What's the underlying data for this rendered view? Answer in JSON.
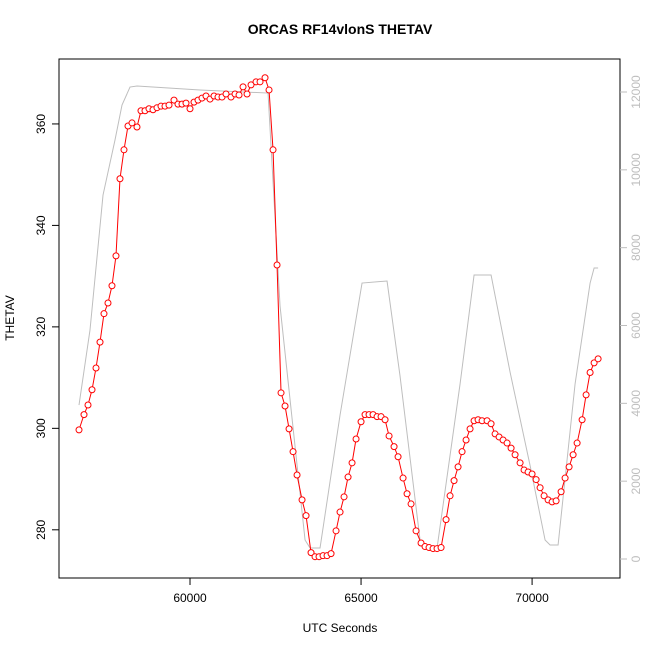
{
  "chart_data": {
    "type": "line",
    "title": "ORCAS RF14vlonS THETAV",
    "x_label": "UTC Seconds",
    "y_label": "THETAV",
    "xlim": [
      56170,
      72570
    ],
    "ylim": [
      270.5,
      372.8
    ],
    "y2lim": [
      -488,
      12848
    ],
    "xticks": [
      60000,
      65000,
      70000
    ],
    "yticks": [
      280,
      300,
      320,
      340,
      360
    ],
    "y2ticks": [
      0,
      2000,
      4000,
      6000,
      8000,
      10000,
      12000
    ],
    "series": [
      {
        "color": "#ff0000",
        "markers": true,
        "x": [
          56755,
          56901,
          57018,
          57135,
          57252,
          57369,
          57485,
          57602,
          57719,
          57836,
          57953,
          58070,
          58187,
          58304,
          58450,
          58567,
          58684,
          58801,
          58918,
          59035,
          59152,
          59269,
          59386,
          59532,
          59649,
          59766,
          59883,
          60000,
          60117,
          60234,
          60351,
          60468,
          60585,
          60702,
          60819,
          60936,
          61053,
          61199,
          61316,
          61433,
          61550,
          61667,
          61784,
          61930,
          62047,
          62193,
          62310,
          62427,
          62544,
          62661,
          62778,
          62895,
          63012,
          63129,
          63275,
          63392,
          63538,
          63655,
          63772,
          63889,
          64006,
          64123,
          64269,
          64386,
          64503,
          64620,
          64737,
          64854,
          65000,
          65117,
          65234,
          65351,
          65468,
          65585,
          65702,
          65819,
          65965,
          66082,
          66228,
          66345,
          66462,
          66608,
          66754,
          66871,
          66988,
          67105,
          67222,
          67339,
          67485,
          67602,
          67719,
          67836,
          67953,
          68070,
          68187,
          68304,
          68421,
          68538,
          68684,
          68801,
          68918,
          69035,
          69152,
          69269,
          69386,
          69503,
          69649,
          69766,
          69883,
          70000,
          70117,
          70234,
          70351,
          70468,
          70585,
          70702,
          70848,
          70965,
          71082,
          71199,
          71316,
          71462,
          71579,
          71696,
          71813,
          71930
        ],
        "values": [
          299.7,
          302.7,
          304.6,
          307.6,
          311.9,
          317.0,
          322.6,
          324.7,
          328.1,
          334.0,
          349.2,
          354.9,
          359.6,
          360.2,
          359.4,
          362.6,
          362.6,
          363.0,
          362.8,
          363.2,
          363.5,
          363.5,
          363.7,
          364.7,
          363.9,
          363.9,
          364.1,
          363.0,
          364.3,
          364.7,
          365.1,
          365.5,
          364.9,
          365.5,
          365.3,
          365.3,
          365.9,
          365.3,
          365.9,
          365.7,
          367.3,
          365.9,
          367.7,
          368.3,
          368.3,
          369.1,
          366.7,
          354.9,
          332.2,
          307.0,
          304.4,
          299.9,
          295.4,
          290.8,
          285.9,
          282.8,
          275.5,
          274.7,
          274.7,
          274.9,
          274.9,
          275.3,
          279.8,
          283.5,
          286.5,
          290.4,
          293.2,
          297.9,
          301.3,
          302.7,
          302.7,
          302.7,
          302.3,
          302.3,
          301.7,
          298.5,
          296.4,
          294.4,
          290.2,
          287.1,
          285.1,
          279.8,
          277.4,
          276.7,
          276.5,
          276.3,
          276.3,
          276.5,
          282.0,
          286.7,
          289.7,
          292.4,
          295.4,
          297.7,
          299.9,
          301.5,
          301.7,
          301.5,
          301.5,
          300.9,
          298.9,
          298.3,
          297.7,
          297.1,
          296.1,
          294.8,
          293.2,
          291.8,
          291.4,
          291.0,
          289.9,
          288.3,
          286.7,
          285.9,
          285.5,
          285.7,
          287.5,
          290.2,
          292.4,
          294.8,
          297.1,
          301.7,
          306.6,
          311.0,
          312.9,
          313.7
        ]
      },
      {
        "color": "#bebebe",
        "axis": "y2",
        "markers": false,
        "x": [
          56755,
          57076,
          57457,
          57807,
          58012,
          58246,
          58450,
          60292,
          62281,
          62632,
          63363,
          63509,
          63801,
          64386,
          65029,
          65760,
          66140,
          66725,
          67018,
          67222,
          67895,
          68304,
          68801,
          69357,
          69942,
          70380,
          70526,
          70760,
          71257,
          71696,
          71813,
          71930
        ],
        "values": [
          3957,
          5884,
          9352,
          10766,
          11665,
          12127,
          12153,
          12050,
          11973,
          6500,
          488,
          283,
          283,
          3700,
          7091,
          7143,
          4700,
          488,
          283,
          283,
          4500,
          7297,
          7297,
          4800,
          2400,
          488,
          360,
          360,
          4500,
          7091,
          7477,
          7477
        ]
      }
    ]
  }
}
